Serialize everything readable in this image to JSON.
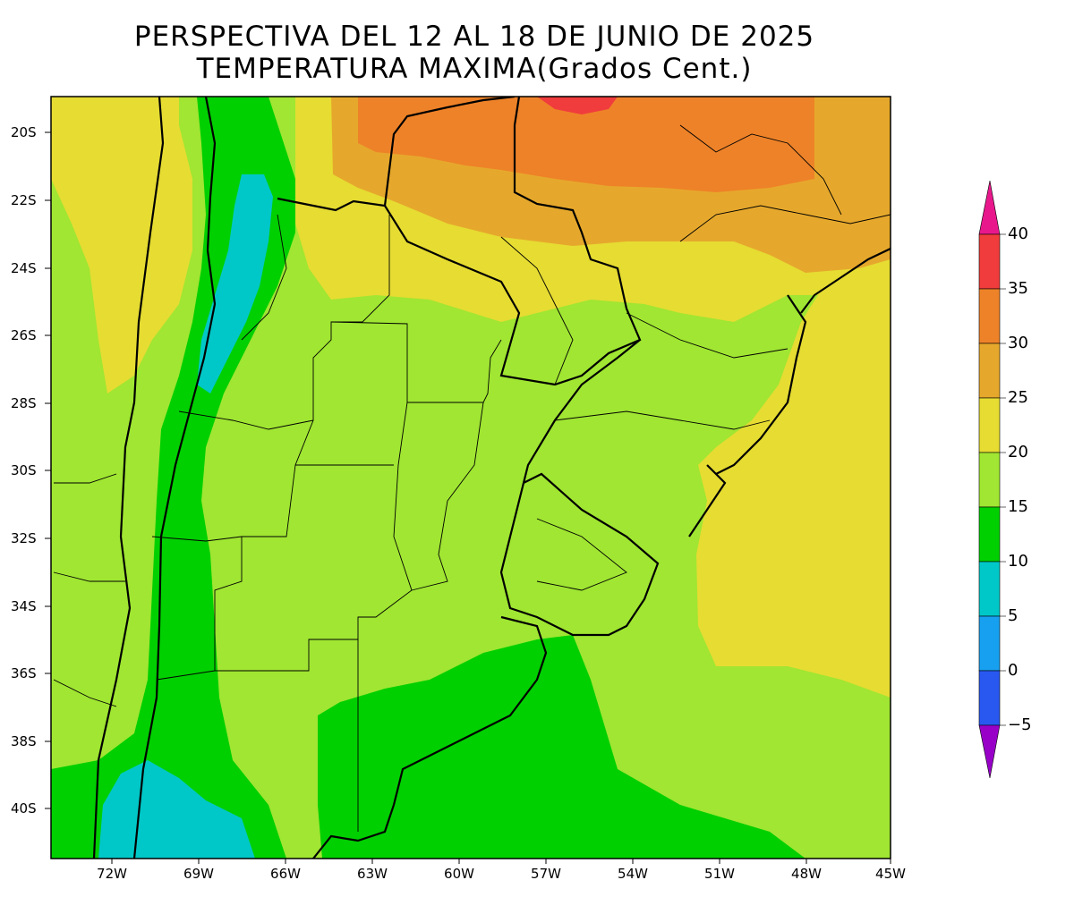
{
  "title": {
    "line1": "PERSPECTIVA DEL 12 AL 18 DE JUNIO DE 2025",
    "line2": "TEMPERATURA MAXIMA(Grados Cent.)"
  },
  "lat_ticks": [
    "20S",
    "22S",
    "24S",
    "26S",
    "28S",
    "30S",
    "32S",
    "34S",
    "36S",
    "38S",
    "40S"
  ],
  "lon_ticks": [
    "72W",
    "69W",
    "66W",
    "63W",
    "60W",
    "57W",
    "54W",
    "51W",
    "48W",
    "45W"
  ],
  "colorbar": {
    "labels": [
      "40",
      "35",
      "30",
      "25",
      "20",
      "15",
      "10",
      "5",
      "0",
      "−5"
    ],
    "colors": {
      "above_40": "#e8188c",
      "35_40": "#f03c3c",
      "30_35": "#ee8228",
      "25_30": "#e6a82c",
      "20_25": "#e6dc32",
      "15_20": "#a0e632",
      "10_15": "#00d000",
      "5_10": "#00c8c8",
      "0_5": "#18a0f0",
      "m5_0": "#2858f0",
      "below_m5": "#9800c8"
    }
  },
  "map": {
    "lon_range": [
      -74,
      -45
    ],
    "lat_range": [
      -41.5,
      -19
    ],
    "units": "Grados Cent."
  }
}
